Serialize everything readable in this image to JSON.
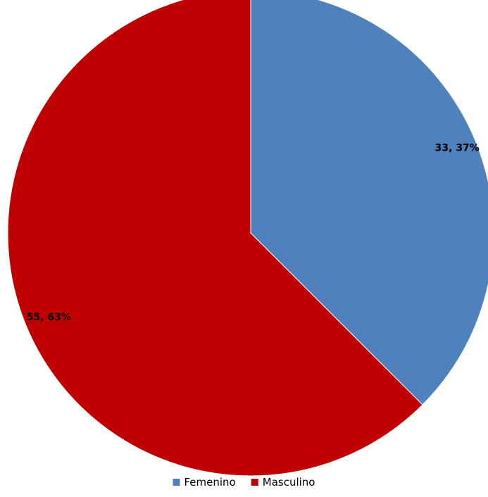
{
  "chart_data": {
    "type": "pie",
    "title": "",
    "categories": [
      "Femenino",
      "Masculino"
    ],
    "values": [
      33,
      55
    ],
    "percentages": [
      37,
      63
    ],
    "data_labels": [
      "33, 37%",
      "55, 63%"
    ],
    "colors": [
      "#4F81BD",
      "#C00000"
    ],
    "start_angle_deg": 0,
    "direction": "clockwise",
    "legend": {
      "position": "bottom",
      "entries": [
        "Femenino",
        "Masculino"
      ]
    }
  }
}
